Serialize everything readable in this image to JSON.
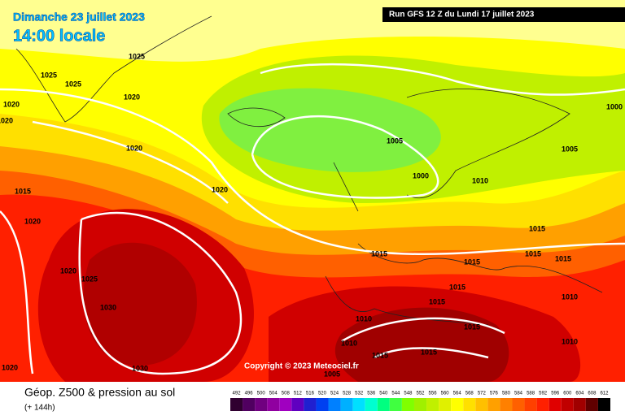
{
  "header": {
    "date": "Dimanche 23 juillet 2023",
    "time": "14:00 locale",
    "run": "Run GFS 12 Z du Lundi 17 juillet 2023"
  },
  "isobar_labels": [
    "1025",
    "1025",
    "1025",
    "1020",
    "1020",
    "1020",
    "1020",
    "1015",
    "1020",
    "1020",
    "1005",
    "1000",
    "1010",
    "1005",
    "1000",
    "1015",
    "1015",
    "1015",
    "1015",
    "1015",
    "1015",
    "1015",
    "1010",
    "1020",
    "1025",
    "1030",
    "1010",
    "1015",
    "1010",
    "1015",
    "1015",
    "1010",
    "1020",
    "1030",
    "1005"
  ],
  "copyright": "Copyright © 2023 Meteociel.fr",
  "footer": {
    "title": "Géop. Z500 & pression au sol",
    "subtitle": "(+ 144h)"
  },
  "colorbar": [
    {
      "label": "492",
      "color": "#300030"
    },
    {
      "label": "496",
      "color": "#500060"
    },
    {
      "label": "500",
      "color": "#700080"
    },
    {
      "label": "504",
      "color": "#9000a0"
    },
    {
      "label": "508",
      "color": "#a000c0"
    },
    {
      "label": "512",
      "color": "#6000c0"
    },
    {
      "label": "516",
      "color": "#2020d0"
    },
    {
      "label": "520",
      "color": "#0040f0"
    },
    {
      "label": "524",
      "color": "#0080ff"
    },
    {
      "label": "528",
      "color": "#00b0ff"
    },
    {
      "label": "532",
      "color": "#00e0ff"
    },
    {
      "label": "536",
      "color": "#00ffd0"
    },
    {
      "label": "540",
      "color": "#00ff80"
    },
    {
      "label": "544",
      "color": "#40ff40"
    },
    {
      "label": "548",
      "color": "#80ff00"
    },
    {
      "label": "552",
      "color": "#a0f000"
    },
    {
      "label": "556",
      "color": "#c0f000"
    },
    {
      "label": "560",
      "color": "#e0f000"
    },
    {
      "label": "564",
      "color": "#ffff00"
    },
    {
      "label": "568",
      "color": "#ffe000"
    },
    {
      "label": "572",
      "color": "#ffc000"
    },
    {
      "label": "576",
      "color": "#ffa000"
    },
    {
      "label": "580",
      "color": "#ff8000"
    },
    {
      "label": "584",
      "color": "#ff6000"
    },
    {
      "label": "588",
      "color": "#ff4000"
    },
    {
      "label": "592",
      "color": "#ff2000"
    },
    {
      "label": "596",
      "color": "#e00000"
    },
    {
      "label": "600",
      "color": "#c00000"
    },
    {
      "label": "604",
      "color": "#a00000"
    },
    {
      "label": "608",
      "color": "#600000"
    },
    {
      "label": "612",
      "color": "#000000"
    }
  ]
}
